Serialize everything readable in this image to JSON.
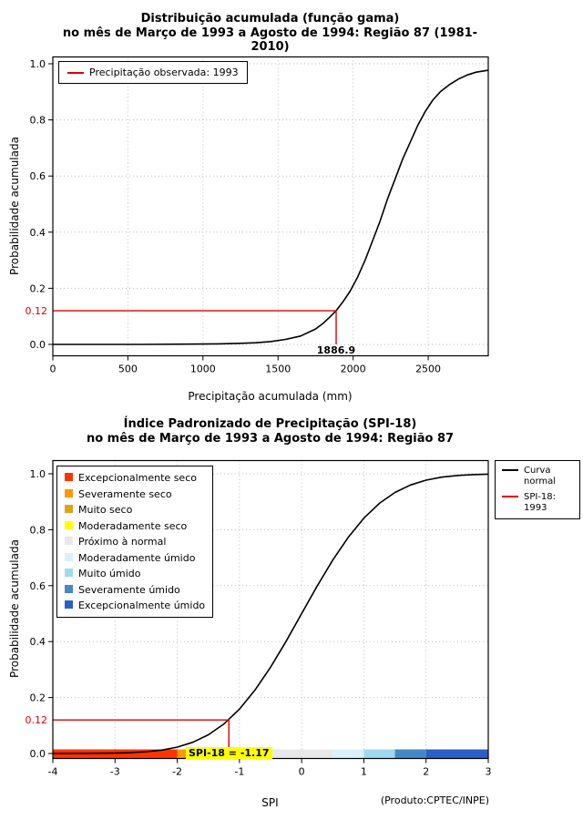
{
  "colors": {
    "curve": "#000000",
    "highlight": "#dd0000",
    "grid": "#bbbbbb",
    "axis": "#000000",
    "background": "#ffffff"
  },
  "footer_note": "(Produto:CPTEC/INPE)",
  "chart_data": [
    {
      "type": "line",
      "title": "Distribuição acumulada (função gama)",
      "subtitle": "no mês de Março de 1993 a Agosto de 1994: Região 87 (1981-2010)",
      "xlabel": "Precipitação acumulada (mm)",
      "ylabel": "Probabilidade acumulada",
      "xlim": [
        0,
        2900
      ],
      "ylim": [
        0,
        1
      ],
      "grid": true,
      "xticks": [
        0,
        500,
        1000,
        1500,
        2000,
        2500
      ],
      "xtick_labels": [
        "0",
        "500",
        "1000",
        "1500",
        "2000",
        "2500"
      ],
      "yticks": [
        0.0,
        0.2,
        0.4,
        0.6,
        0.8,
        1.0
      ],
      "ytick_labels": [
        "0.0",
        "0.2",
        "0.4",
        "0.6",
        "0.8",
        "1.0"
      ],
      "legend_position": "top-left",
      "legend": [
        {
          "label": "Precipitação observada: 1993",
          "color": "#dd0000",
          "type": "line"
        }
      ],
      "highlight": {
        "x": 1886.9,
        "y": 0.12,
        "x_label": "1886.9",
        "y_label": "0.12"
      },
      "series": [
        {
          "name": "Distribuição gama acumulada",
          "color": "#000000",
          "points": [
            [
              0,
              0
            ],
            [
              300,
              0
            ],
            [
              600,
              0
            ],
            [
              900,
              0.001
            ],
            [
              1100,
              0.002
            ],
            [
              1250,
              0.004
            ],
            [
              1350,
              0.006
            ],
            [
              1450,
              0.01
            ],
            [
              1550,
              0.018
            ],
            [
              1650,
              0.03
            ],
            [
              1750,
              0.055
            ],
            [
              1800,
              0.075
            ],
            [
              1850,
              0.1
            ],
            [
              1886.9,
              0.12
            ],
            [
              1930,
              0.15
            ],
            [
              1980,
              0.19
            ],
            [
              2030,
              0.24
            ],
            [
              2080,
              0.3
            ],
            [
              2130,
              0.37
            ],
            [
              2180,
              0.44
            ],
            [
              2230,
              0.52
            ],
            [
              2280,
              0.59
            ],
            [
              2330,
              0.66
            ],
            [
              2380,
              0.72
            ],
            [
              2430,
              0.78
            ],
            [
              2480,
              0.83
            ],
            [
              2530,
              0.87
            ],
            [
              2580,
              0.9
            ],
            [
              2640,
              0.925
            ],
            [
              2700,
              0.945
            ],
            [
              2760,
              0.96
            ],
            [
              2820,
              0.97
            ],
            [
              2900,
              0.977
            ]
          ]
        }
      ]
    },
    {
      "type": "line",
      "title": "Índice Padronizado de Precipitação (SPI-18)",
      "subtitle": "no mês de Março de 1993 a Agosto de 1994: Região 87",
      "xlabel": "SPI",
      "ylabel": "Probabilidade acumulada",
      "xlim": [
        -4,
        3
      ],
      "ylim": [
        0,
        1
      ],
      "grid": true,
      "xticks": [
        -4,
        -3,
        -2,
        -1,
        0,
        1,
        2,
        3
      ],
      "xtick_labels": [
        "-4",
        "-3",
        "-2",
        "-1",
        "0",
        "1",
        "2",
        "3"
      ],
      "yticks": [
        0.0,
        0.2,
        0.4,
        0.6,
        0.8,
        1.0
      ],
      "ytick_labels": [
        "0.0",
        "0.2",
        "0.4",
        "0.6",
        "0.8",
        "1.0"
      ],
      "legend_position": "top-right",
      "legend": [
        {
          "label": "Curva\nnormal",
          "color": "#000000",
          "type": "line"
        },
        {
          "label": "SPI-18: 1993",
          "color": "#dd0000",
          "type": "line"
        }
      ],
      "categories": [
        {
          "label": "Excepcionalmente seco",
          "color": "#ff3300",
          "from": -4,
          "to": -2
        },
        {
          "label": "Severamente seco",
          "color": "#ff9900",
          "from": -2,
          "to": -1.5
        },
        {
          "label": "Muito seco",
          "color": "#dda513",
          "from": -1.5,
          "to": -1
        },
        {
          "label": "Moderadamente seco",
          "color": "#ffff00",
          "from": -1,
          "to": -0.5
        },
        {
          "label": "Próximo à normal",
          "color": "#e8e8e8",
          "from": -0.5,
          "to": 0.5
        },
        {
          "label": "Moderadamente úmido",
          "color": "#d9f0fa",
          "from": 0.5,
          "to": 1
        },
        {
          "label": "Muito úmido",
          "color": "#9fd9f0",
          "from": 1,
          "to": 1.5
        },
        {
          "label": "Severamente úmido",
          "color": "#4488c4",
          "from": 1.5,
          "to": 2
        },
        {
          "label": "Excepcionalmente úmido",
          "color": "#2b5fc8",
          "from": 2,
          "to": 3
        }
      ],
      "highlight": {
        "x": -1.17,
        "y": 0.12,
        "x_label": "SPI-18 = -1.17",
        "y_label": "0.12"
      },
      "series": [
        {
          "name": "Curva normal",
          "color": "#000000",
          "points": [
            [
              -4,
              3e-05
            ],
            [
              -3.5,
              0.0002
            ],
            [
              -3,
              0.0013
            ],
            [
              -2.75,
              0.003
            ],
            [
              -2.5,
              0.0062
            ],
            [
              -2.25,
              0.0122
            ],
            [
              -2,
              0.0228
            ],
            [
              -1.75,
              0.0401
            ],
            [
              -1.5,
              0.0668
            ],
            [
              -1.25,
              0.1056
            ],
            [
              -1,
              0.1587
            ],
            [
              -0.75,
              0.2266
            ],
            [
              -0.5,
              0.3085
            ],
            [
              -0.25,
              0.4013
            ],
            [
              0,
              0.5
            ],
            [
              0.25,
              0.5987
            ],
            [
              0.5,
              0.6915
            ],
            [
              0.75,
              0.7734
            ],
            [
              1,
              0.8413
            ],
            [
              1.25,
              0.8944
            ],
            [
              1.5,
              0.9332
            ],
            [
              1.75,
              0.9599
            ],
            [
              2,
              0.9772
            ],
            [
              2.25,
              0.9878
            ],
            [
              2.5,
              0.9938
            ],
            [
              2.75,
              0.997
            ],
            [
              3,
              0.9987
            ]
          ]
        }
      ]
    }
  ]
}
